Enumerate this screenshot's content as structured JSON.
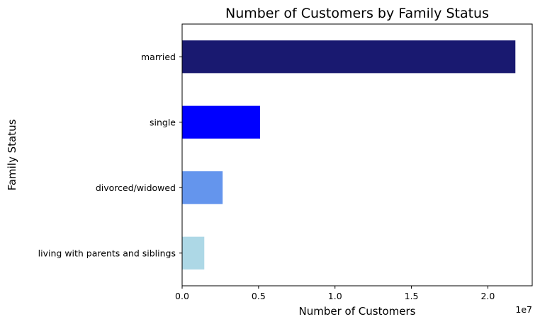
{
  "chart_data": {
    "type": "bar",
    "orientation": "horizontal",
    "title": "Number of Customers by Family Status",
    "xlabel": "Number of Customers",
    "ylabel": "Family Status",
    "x_offset_label": "1e7",
    "x_scale_factor": 10000000,
    "xlim": [
      0,
      22900000
    ],
    "x_ticks": [
      0,
      5000000,
      10000000,
      15000000,
      20000000
    ],
    "x_tick_labels": [
      "0.0",
      "0.5",
      "1.0",
      "1.5",
      "2.0"
    ],
    "categories": [
      "married",
      "single",
      "divorced/widowed",
      "living with parents and siblings"
    ],
    "values": [
      21800000,
      5100000,
      2650000,
      1450000
    ],
    "colors": [
      "#191970",
      "#0000ff",
      "#6495ed",
      "#add8e6"
    ],
    "grid": false,
    "legend": "none"
  }
}
